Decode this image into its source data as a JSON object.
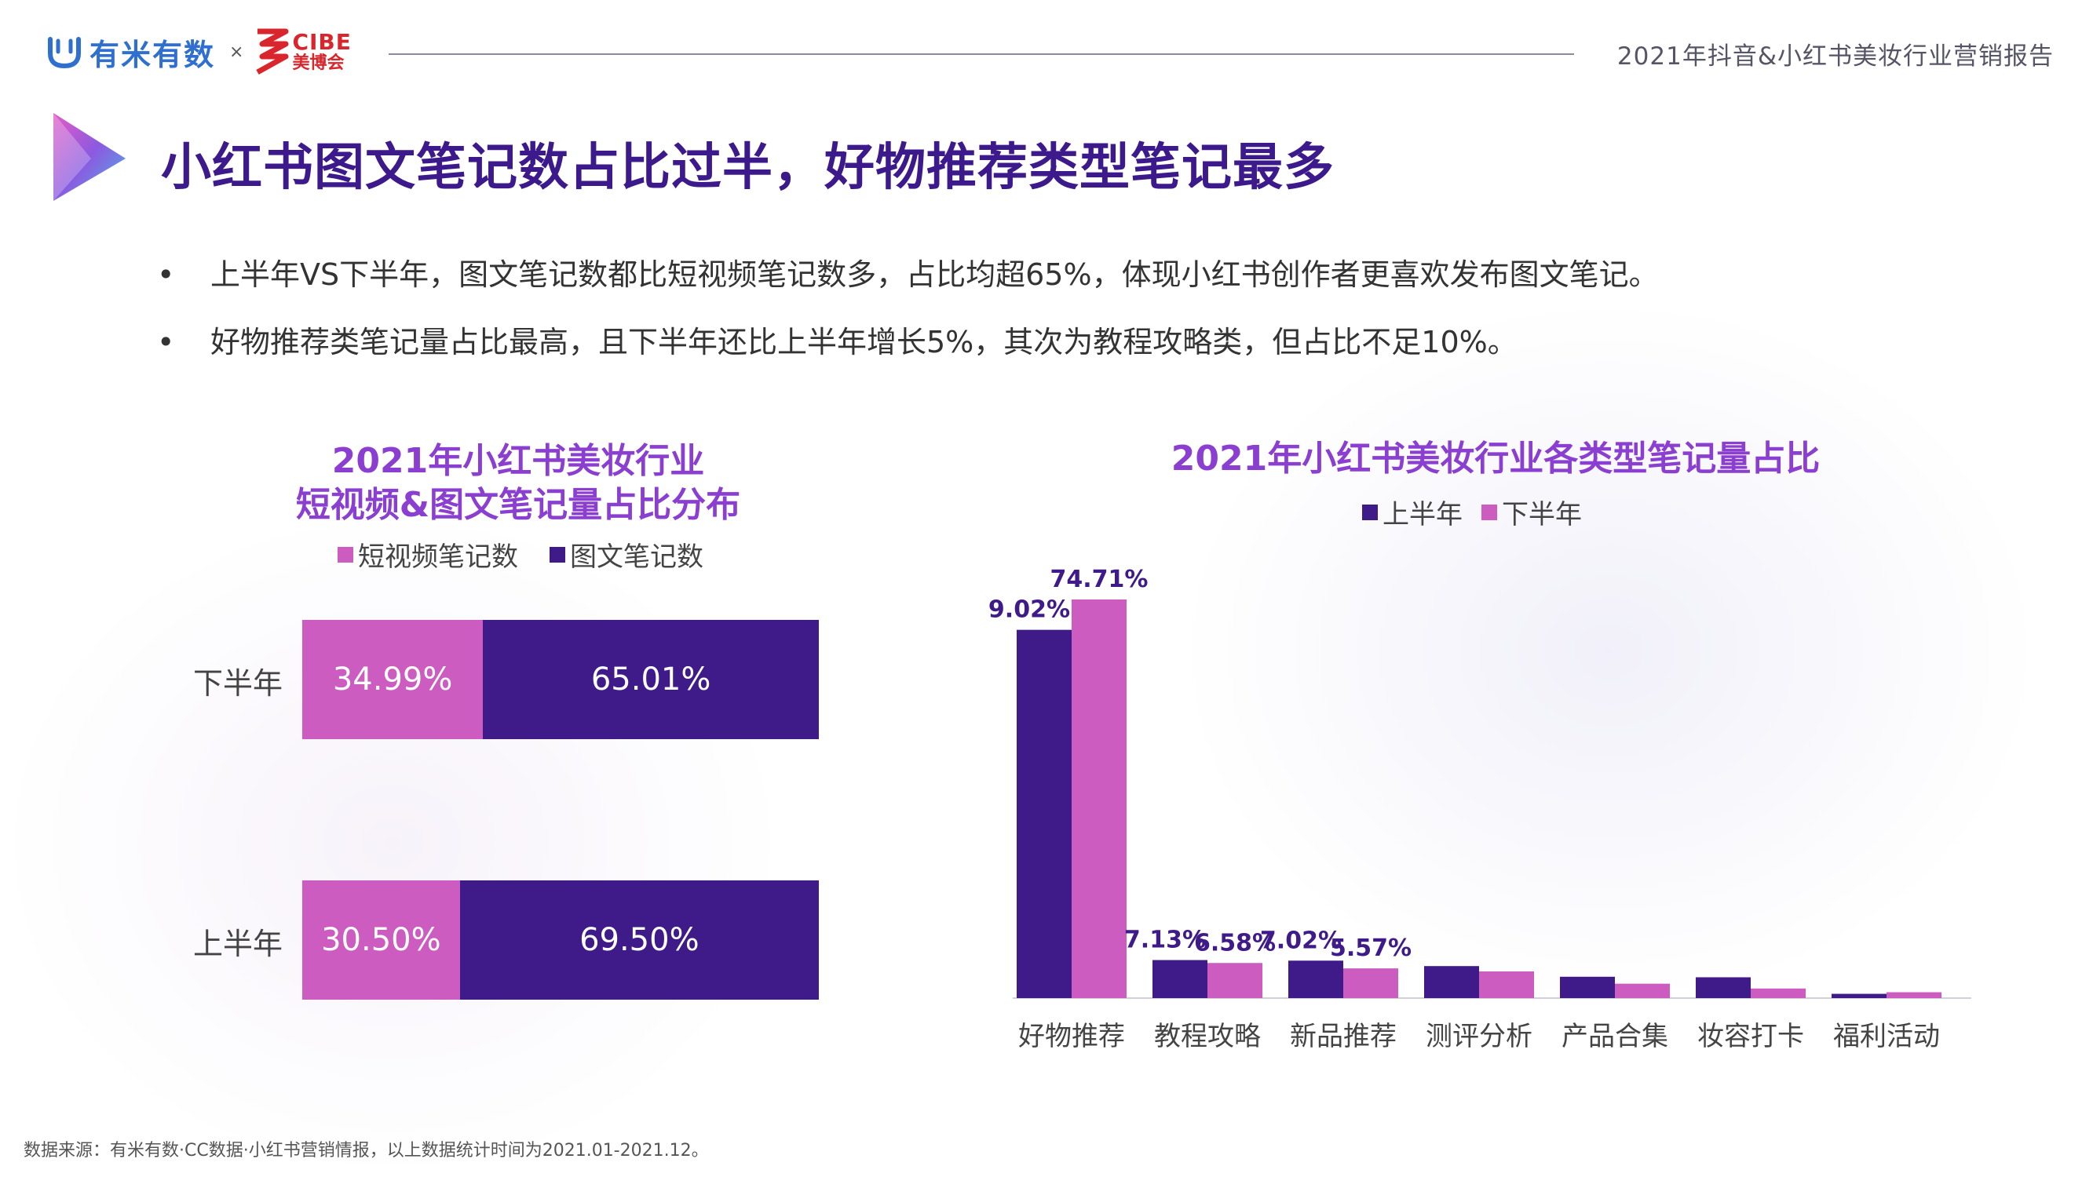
{
  "header": {
    "brand_name": "有米有数",
    "brand_sep": "×",
    "partner_en": "CIBE",
    "partner_cn": "美博会",
    "report_title": "2021年抖音&小红书美妆行业营销报告"
  },
  "slide": {
    "title": "小红书图文笔记数占比过半，好物推荐类型笔记最多",
    "bullets": [
      "上半年VS下半年，图文笔记数都比短视频笔记数多，占比均超65%，体现小红书创作者更喜欢发布图文笔记。",
      "好物推荐类笔记量占比最高，且下半年还比上半年增长5%，其次为教程攻略类，但占比不足10%。"
    ]
  },
  "colors": {
    "dark_purple": "#3f1b8a",
    "pink": "#cc5cc0",
    "title_purple": "#8b3fd1"
  },
  "icons": {
    "brand": "youmi-logo-icon",
    "partner": "cibe-logo-icon",
    "title": "play-triangle-icon"
  },
  "chart_data": [
    {
      "type": "bar",
      "orientation": "horizontal",
      "stacked": true,
      "title_line1": "2021年小红书美妆行业",
      "title_line2": "短视频&图文笔记量占比分布",
      "categories": [
        "下半年",
        "上半年"
      ],
      "series": [
        {
          "name": "短视频笔记数",
          "values": [
            34.99,
            30.5
          ],
          "labels": [
            "34.99%",
            "30.50%"
          ]
        },
        {
          "name": "图文笔记数",
          "values": [
            65.01,
            69.5
          ],
          "labels": [
            "65.01%",
            "69.50%"
          ]
        }
      ],
      "xlim": [
        0,
        100
      ],
      "legend": "top"
    },
    {
      "type": "bar",
      "title": "2021年小红书美妆行业各类型笔记量占比",
      "categories": [
        "好物推荐",
        "教程攻略",
        "新品推荐",
        "测评分析",
        "产品合集",
        "妆容打卡",
        "福利活动"
      ],
      "series": [
        {
          "name": "上半年",
          "values": [
            69.02,
            7.13,
            7.02,
            6.0,
            4.0,
            3.9,
            0.8
          ],
          "labels": [
            "69.02%",
            "7.13%",
            "7.02%",
            "",
            "",
            "",
            ""
          ]
        },
        {
          "name": "下半年",
          "values": [
            74.71,
            6.58,
            5.57,
            5.0,
            2.7,
            1.8,
            1.1
          ],
          "labels": [
            "74.71%",
            "6.58%",
            "5.57%",
            "",
            "",
            "",
            ""
          ]
        }
      ],
      "ylim": [
        0,
        80
      ],
      "grid": false,
      "legend": "top"
    }
  ],
  "footnote": "数据来源：有米有数·CC数据·小红书营销情报，以上数据统计时间为2021.01-2021.12。"
}
